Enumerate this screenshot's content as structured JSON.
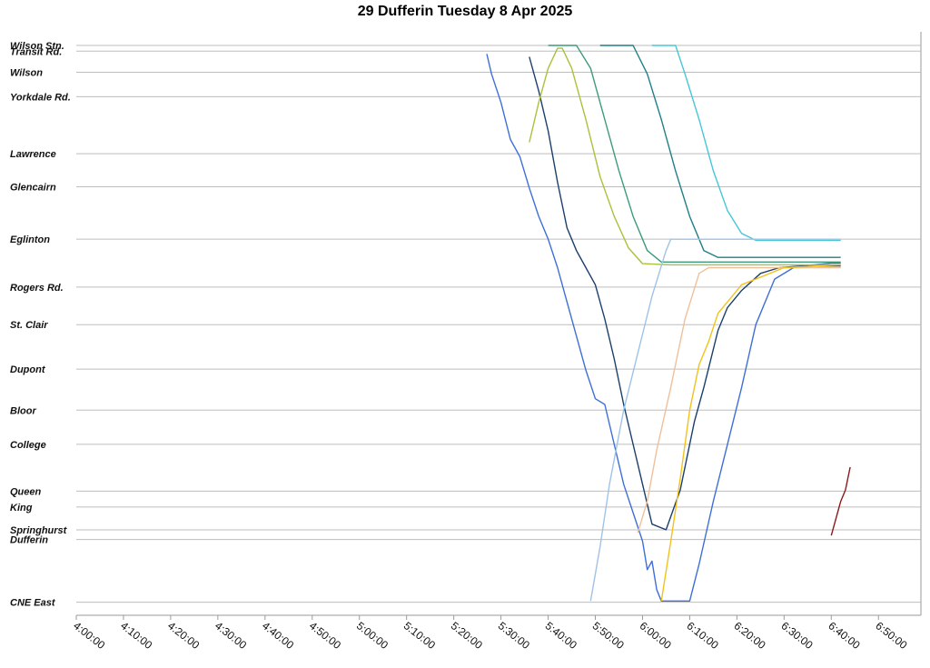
{
  "chart_data": {
    "type": "line",
    "title": "29 Dufferin Tuesday 8 Apr 2025",
    "xlabel": "",
    "ylabel": "",
    "x_range": [
      "4:00:00",
      "6:59:00"
    ],
    "x_ticks": [
      "4:00:00",
      "4:10:00",
      "4:20:00",
      "4:30:00",
      "4:40:00",
      "4:50:00",
      "5:00:00",
      "5:10:00",
      "5:20:00",
      "5:30:00",
      "5:40:00",
      "5:50:00",
      "6:00:00",
      "6:10:00",
      "6:20:00",
      "6:30:00",
      "6:40:00",
      "6:50:00"
    ],
    "grid": true,
    "legend": "none",
    "stops": [
      {
        "name": "Wilson Stn.",
        "pos": 0.0
      },
      {
        "name": "Transit Rd.",
        "pos": 0.01
      },
      {
        "name": "Wilson",
        "pos": 0.047
      },
      {
        "name": "Yorkdale Rd.",
        "pos": 0.09
      },
      {
        "name": "Lawrence",
        "pos": 0.19
      },
      {
        "name": "Glencairn",
        "pos": 0.248
      },
      {
        "name": "Eglinton",
        "pos": 0.34
      },
      {
        "name": "Rogers Rd.",
        "pos": 0.424
      },
      {
        "name": "St. Clair",
        "pos": 0.49
      },
      {
        "name": "Dupont",
        "pos": 0.568
      },
      {
        "name": "Bloor",
        "pos": 0.64
      },
      {
        "name": "College",
        "pos": 0.7
      },
      {
        "name": "Queen",
        "pos": 0.782
      },
      {
        "name": "King",
        "pos": 0.81
      },
      {
        "name": "Springhurst",
        "pos": 0.85
      },
      {
        "name": "Dufferin",
        "pos": 0.867
      },
      {
        "name": "CNE East",
        "pos": 0.977
      }
    ],
    "series": [
      {
        "color": "#3e6fd6",
        "points": [
          [
            "5:27:00",
            0.015
          ],
          [
            "5:28:00",
            0.05
          ],
          [
            "5:30:00",
            0.1
          ],
          [
            "5:32:00",
            0.165
          ],
          [
            "5:34:00",
            0.195
          ],
          [
            "5:36:00",
            0.25
          ],
          [
            "5:38:00",
            0.3
          ],
          [
            "5:40:00",
            0.34
          ],
          [
            "5:42:00",
            0.39
          ],
          [
            "5:44:00",
            0.45
          ],
          [
            "5:46:00",
            0.51
          ],
          [
            "5:48:00",
            0.57
          ],
          [
            "5:50:00",
            0.62
          ],
          [
            "5:52:00",
            0.63
          ],
          [
            "5:54:00",
            0.7
          ],
          [
            "5:56:00",
            0.77
          ],
          [
            "5:58:00",
            0.82
          ],
          [
            "6:00:00",
            0.87
          ],
          [
            "6:01:00",
            0.92
          ],
          [
            "6:02:00",
            0.905
          ],
          [
            "6:03:00",
            0.955
          ],
          [
            "6:04:00",
            0.975
          ],
          [
            "6:10:00",
            0.975
          ],
          [
            "6:12:00",
            0.91
          ],
          [
            "6:15:00",
            0.8
          ],
          [
            "6:18:00",
            0.7
          ],
          [
            "6:21:00",
            0.6
          ],
          [
            "6:24:00",
            0.49
          ],
          [
            "6:28:00",
            0.41
          ],
          [
            "6:32:00",
            0.39
          ],
          [
            "6:36:00",
            0.385
          ],
          [
            "6:40:00",
            0.382
          ],
          [
            "6:42:00",
            0.382
          ]
        ]
      },
      {
        "color": "#1b3f6b",
        "points": [
          [
            "5:36:00",
            0.02
          ],
          [
            "5:38:00",
            0.08
          ],
          [
            "5:40:00",
            0.15
          ],
          [
            "5:42:00",
            0.24
          ],
          [
            "5:44:00",
            0.32
          ],
          [
            "5:46:00",
            0.36
          ],
          [
            "5:48:00",
            0.39
          ],
          [
            "5:50:00",
            0.42
          ],
          [
            "5:52:00",
            0.48
          ],
          [
            "5:54:00",
            0.55
          ],
          [
            "5:56:00",
            0.63
          ],
          [
            "5:58:00",
            0.7
          ],
          [
            "6:00:00",
            0.77
          ],
          [
            "6:02:00",
            0.84
          ],
          [
            "6:05:00",
            0.85
          ],
          [
            "6:08:00",
            0.78
          ],
          [
            "6:11:00",
            0.66
          ],
          [
            "6:13:00",
            0.6
          ],
          [
            "6:16:00",
            0.5
          ],
          [
            "6:18:00",
            0.46
          ],
          [
            "6:21:00",
            0.43
          ],
          [
            "6:25:00",
            0.4
          ],
          [
            "6:29:00",
            0.39
          ],
          [
            "6:34:00",
            0.387
          ],
          [
            "6:42:00",
            0.387
          ]
        ]
      },
      {
        "color": "#a8c23a",
        "points": [
          [
            "5:36:00",
            0.17
          ],
          [
            "5:38:00",
            0.1
          ],
          [
            "5:40:00",
            0.04
          ],
          [
            "5:42:00",
            0.005
          ],
          [
            "5:43:00",
            0.005
          ],
          [
            "5:45:00",
            0.04
          ],
          [
            "5:48:00",
            0.13
          ],
          [
            "5:51:00",
            0.23
          ],
          [
            "5:54:00",
            0.3
          ],
          [
            "5:57:00",
            0.355
          ],
          [
            "6:00:00",
            0.383
          ],
          [
            "6:06:00",
            0.385
          ],
          [
            "6:20:00",
            0.385
          ],
          [
            "6:42:00",
            0.385
          ]
        ]
      },
      {
        "color": "#3d9a7a",
        "points": [
          [
            "5:40:00",
            0.0
          ],
          [
            "5:46:00",
            0.0
          ],
          [
            "5:49:00",
            0.04
          ],
          [
            "5:52:00",
            0.13
          ],
          [
            "5:55:00",
            0.22
          ],
          [
            "5:58:00",
            0.3
          ],
          [
            "6:01:00",
            0.36
          ],
          [
            "6:04:00",
            0.38
          ],
          [
            "6:14:00",
            0.38
          ],
          [
            "6:42:00",
            0.38
          ]
        ]
      },
      {
        "color": "#1f7f86",
        "points": [
          [
            "5:51:00",
            0.0
          ],
          [
            "5:58:00",
            0.0
          ],
          [
            "6:01:00",
            0.05
          ],
          [
            "6:04:00",
            0.13
          ],
          [
            "6:07:00",
            0.22
          ],
          [
            "6:10:00",
            0.3
          ],
          [
            "6:13:00",
            0.36
          ],
          [
            "6:16:00",
            0.372
          ],
          [
            "6:28:00",
            0.372
          ],
          [
            "6:42:00",
            0.372
          ]
        ]
      },
      {
        "color": "#46c6d6",
        "points": [
          [
            "6:02:00",
            0.0
          ],
          [
            "6:07:00",
            0.0
          ],
          [
            "6:09:00",
            0.05
          ],
          [
            "6:12:00",
            0.13
          ],
          [
            "6:15:00",
            0.22
          ],
          [
            "6:18:00",
            0.29
          ],
          [
            "6:21:00",
            0.33
          ],
          [
            "6:24:00",
            0.342
          ],
          [
            "6:32:00",
            0.342
          ],
          [
            "6:42:00",
            0.342
          ]
        ]
      },
      {
        "color": "#9fc3e6",
        "points": [
          [
            "5:49:00",
            0.975
          ],
          [
            "5:51:00",
            0.88
          ],
          [
            "5:53:00",
            0.77
          ],
          [
            "5:56:00",
            0.64
          ],
          [
            "5:59:00",
            0.54
          ],
          [
            "6:02:00",
            0.44
          ],
          [
            "6:05:00",
            0.36
          ],
          [
            "6:06:00",
            0.34
          ],
          [
            "6:42:00",
            0.34
          ]
        ]
      },
      {
        "color": "#f0c09a",
        "points": [
          [
            "5:59:00",
            0.855
          ],
          [
            "6:01:00",
            0.8
          ],
          [
            "6:03:00",
            0.71
          ],
          [
            "6:06:00",
            0.6
          ],
          [
            "6:09:00",
            0.48
          ],
          [
            "6:12:00",
            0.4
          ],
          [
            "6:14:00",
            0.39
          ],
          [
            "6:42:00",
            0.39
          ]
        ]
      },
      {
        "color": "#f2c21a",
        "points": [
          [
            "6:04:00",
            0.975
          ],
          [
            "6:06:00",
            0.87
          ],
          [
            "6:08:00",
            0.76
          ],
          [
            "6:10:00",
            0.64
          ],
          [
            "6:12:00",
            0.56
          ],
          [
            "6:14:00",
            0.52
          ],
          [
            "6:16:00",
            0.47
          ],
          [
            "6:19:00",
            0.44
          ],
          [
            "6:21:00",
            0.42
          ],
          [
            "6:30:00",
            0.39
          ],
          [
            "6:42:00",
            0.385
          ]
        ]
      },
      {
        "color": "#8b1a1a",
        "points": [
          [
            "6:40:00",
            0.86
          ],
          [
            "6:41:00",
            0.83
          ],
          [
            "6:42:00",
            0.8
          ],
          [
            "6:43:00",
            0.78
          ],
          [
            "6:44:00",
            0.74
          ]
        ]
      }
    ]
  }
}
